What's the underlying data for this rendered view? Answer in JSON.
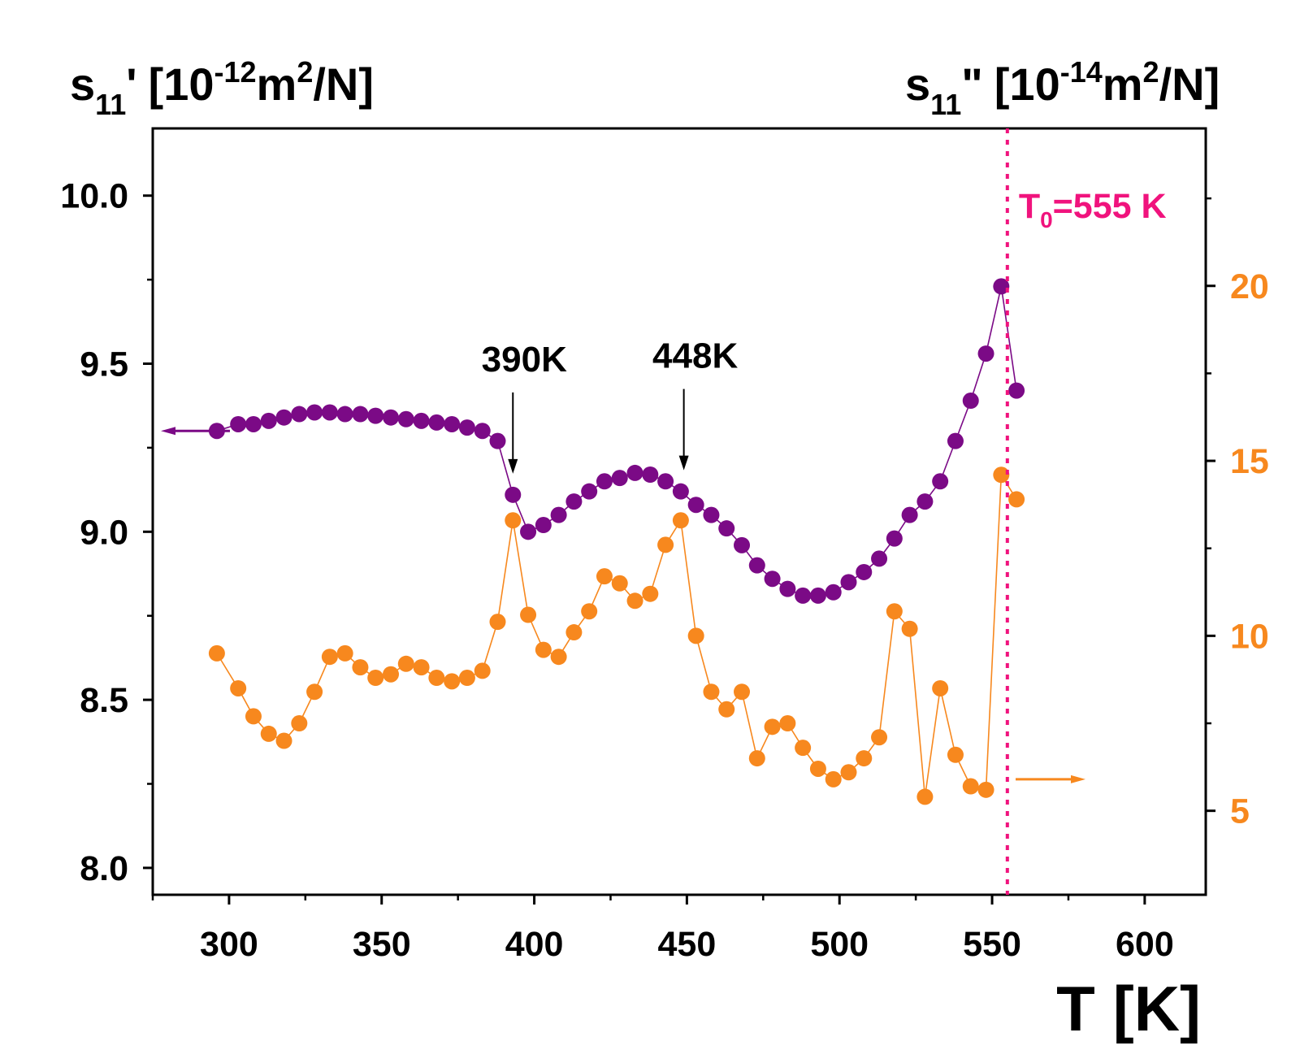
{
  "chart_data": {
    "type": "scatter",
    "x_axis": {
      "label_main": "T",
      "label_unit": "[K]",
      "xlim": [
        275,
        620
      ],
      "ticks": [
        300,
        350,
        400,
        450,
        500,
        550,
        600
      ],
      "tick_labels": [
        "300",
        "350",
        "400",
        "450",
        "500",
        "550",
        "600"
      ]
    },
    "left_axis": {
      "label": {
        "sym": "s",
        "sub": "11",
        "prime": "'",
        "pre": "[10",
        "exp": "-12",
        "mid": "m",
        "exp2": "2",
        "post": "/N]"
      },
      "ylim": [
        7.92,
        10.2
      ],
      "ticks": [
        8.0,
        8.5,
        9.0,
        9.5,
        10.0
      ],
      "tick_labels": [
        "8.0",
        "8.5",
        "9.0",
        "9.5",
        "10.0"
      ]
    },
    "right_axis": {
      "label": {
        "sym": "s",
        "sub": "11",
        "prime": "\"",
        "pre": "[10",
        "exp": "-14",
        "mid": "m",
        "exp2": "2",
        "post": "/N]"
      },
      "ylim": [
        2.6,
        24.5
      ],
      "ticks": [
        5,
        10,
        15,
        20
      ],
      "tick_labels": [
        "5",
        "10",
        "15",
        "20"
      ]
    },
    "series": [
      {
        "name": "s11'",
        "axis": "left",
        "color": "#7B0A86",
        "x": [
          296,
          303,
          308,
          313,
          318,
          323,
          328,
          333,
          338,
          343,
          348,
          353,
          358,
          363,
          368,
          373,
          378,
          383,
          388,
          393,
          398,
          403,
          408,
          413,
          418,
          423,
          428,
          433,
          438,
          443,
          448,
          453,
          458,
          463,
          468,
          473,
          478,
          483,
          488,
          493,
          498,
          503,
          508,
          513,
          518,
          523,
          528,
          533,
          538,
          543,
          548,
          553,
          558
        ],
        "y": [
          9.3,
          9.32,
          9.32,
          9.33,
          9.34,
          9.35,
          9.355,
          9.355,
          9.35,
          9.35,
          9.345,
          9.34,
          9.335,
          9.33,
          9.325,
          9.32,
          9.31,
          9.3,
          9.27,
          9.11,
          9.0,
          9.02,
          9.05,
          9.09,
          9.12,
          9.15,
          9.16,
          9.175,
          9.17,
          9.15,
          9.12,
          9.08,
          9.05,
          9.01,
          8.96,
          8.9,
          8.86,
          8.83,
          8.81,
          8.81,
          8.82,
          8.85,
          8.88,
          8.92,
          8.98,
          9.05,
          9.09,
          9.15,
          9.27,
          9.39,
          9.53,
          9.73,
          9.42
        ]
      },
      {
        "name": "s11\"",
        "axis": "right",
        "color": "#F7881E",
        "x": [
          296,
          303,
          308,
          313,
          318,
          323,
          328,
          333,
          338,
          343,
          348,
          353,
          358,
          363,
          368,
          373,
          378,
          383,
          388,
          393,
          398,
          403,
          408,
          413,
          418,
          423,
          428,
          433,
          438,
          443,
          448,
          453,
          458,
          463,
          468,
          473,
          478,
          483,
          488,
          493,
          498,
          503,
          508,
          513,
          518,
          523,
          528,
          533,
          538,
          543,
          548,
          553,
          558
        ],
        "y": [
          9.5,
          8.5,
          7.7,
          7.2,
          7.0,
          7.5,
          8.4,
          9.4,
          9.5,
          9.1,
          8.8,
          8.9,
          9.2,
          9.1,
          8.8,
          8.7,
          8.8,
          9.0,
          10.4,
          13.3,
          10.6,
          9.6,
          9.4,
          10.1,
          10.7,
          11.7,
          11.5,
          11.0,
          11.2,
          12.6,
          13.3,
          10.0,
          8.4,
          7.9,
          8.4,
          6.5,
          7.4,
          7.5,
          6.8,
          6.2,
          5.9,
          6.1,
          6.5,
          7.1,
          10.7,
          10.2,
          5.4,
          8.5,
          6.6,
          5.7,
          5.6,
          14.6,
          13.9
        ]
      }
    ],
    "annotations": [
      {
        "text": "390K",
        "x": 393
      },
      {
        "text": "448K",
        "x": 449
      }
    ],
    "transition": {
      "x": 555,
      "label_pre": "T",
      "label_sub": "0",
      "label_post": "=555 K",
      "color": "#F0137D"
    },
    "grid": false
  }
}
